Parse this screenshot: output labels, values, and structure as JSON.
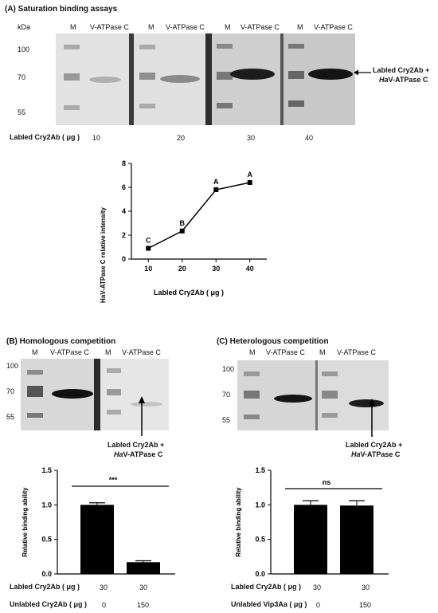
{
  "panelA": {
    "title": "(A) Saturation binding assays",
    "kda_label": "kDa",
    "lane_headers": [
      "M",
      "V-ATPase C",
      "M",
      "V-ATPase C",
      "M",
      "V-ATPase C",
      "M",
      "V-ATPase C"
    ],
    "markers": [
      "100",
      "70",
      "55"
    ],
    "band_annotation_line1": "Labled Cry2Ab +",
    "band_annotation_line2_italic": "Ha",
    "band_annotation_line2_rest": "V-ATPase C",
    "dose_row_label": "Labled Cry2Ab ( μg )",
    "doses": [
      "10",
      "20",
      "30",
      "40"
    ]
  },
  "panelB": {
    "title": "(B) Homologous competition",
    "lane_headers": [
      "M",
      "V-ATPase C",
      "M",
      "V-ATPase C"
    ],
    "markers": [
      "100",
      "70",
      "55"
    ],
    "arrow_label_line1": "Labled Cry2Ab +",
    "arrow_label_line2_italic": "Ha",
    "arrow_label_line2_rest": "V-ATPase C",
    "significance": "***",
    "row1_label": "Labled Cry2Ab ( μg )",
    "row1_values": [
      "30",
      "30"
    ],
    "row2_label": "Unlabled Cry2Ab ( μg )",
    "row2_values": [
      "0",
      "150"
    ]
  },
  "panelC": {
    "title": "(C) Heterologous competition",
    "lane_headers": [
      "M",
      "V-ATPase C",
      "M",
      "V-ATPase C"
    ],
    "markers": [
      "100",
      "70",
      "55"
    ],
    "arrow_label_line1": "Labled Cry2Ab +",
    "arrow_label_line2_italic": "Ha",
    "arrow_label_line2_rest": "V-ATPase C",
    "significance": "ns",
    "row1_label": "Labled Cry2Ab ( μg )",
    "row1_values": [
      "30",
      "30"
    ],
    "row2_label": "Unlabled Vip3Aa ( μg )",
    "row2_values": [
      "0",
      "150"
    ]
  },
  "chart_data": [
    {
      "type": "line",
      "x": [
        10,
        20,
        30,
        40
      ],
      "y": [
        0.9,
        2.35,
        5.8,
        6.4
      ],
      "point_labels": [
        "C",
        "B",
        "A",
        "A"
      ],
      "xlabel": "Labled Cry2Ab ( μg )",
      "ylabel": "HaV-ATPase C relative intensity",
      "xticks": [
        "10",
        "20",
        "30",
        "40"
      ],
      "yticks": [
        "0",
        "2",
        "4",
        "6",
        "8"
      ],
      "xlim": [
        5,
        45
      ],
      "ylim": [
        0,
        8
      ]
    },
    {
      "type": "bar",
      "categories": [
        "",
        ""
      ],
      "values": [
        1.0,
        0.17
      ],
      "errors": [
        0.03,
        0.02
      ],
      "ylabel": "Relative binding ability",
      "yticks": [
        "0.0",
        "0.5",
        "1.0",
        "1.5"
      ],
      "ylim": [
        0,
        1.5
      ]
    },
    {
      "type": "bar",
      "categories": [
        "",
        ""
      ],
      "values": [
        1.0,
        0.99
      ],
      "errors": [
        0.06,
        0.07
      ],
      "ylabel": "Relative binding ability",
      "yticks": [
        "0.0",
        "0.5",
        "1.0",
        "1.5"
      ],
      "ylim": [
        0,
        1.5
      ]
    }
  ]
}
